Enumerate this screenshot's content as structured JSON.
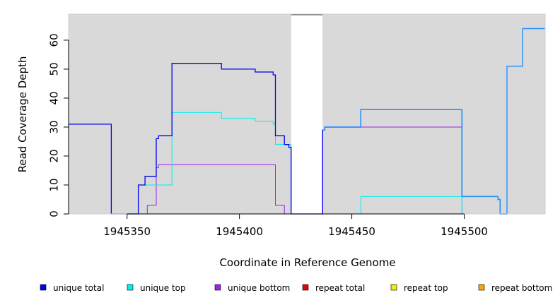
{
  "chart_data": {
    "type": "line",
    "title": "",
    "xlabel": "Coordinate in Reference Genome",
    "ylabel": "Read Coverage Depth",
    "xlim": [
      1945324,
      1945536
    ],
    "ylim": [
      0,
      69
    ],
    "xticks": [
      1945350,
      1945400,
      1945450,
      1945500
    ],
    "yticks": [
      0,
      10,
      20,
      30,
      40,
      50,
      60
    ],
    "grid": false,
    "background": "#d9d9d9",
    "gap_region": [
      1945423,
      1945437
    ],
    "legend_position": "bottom",
    "series": [
      {
        "name": "unique total",
        "color": "#0000ee",
        "steps": [
          [
            1945324,
            31
          ],
          [
            1945343,
            0
          ],
          [
            1945355,
            10
          ],
          [
            1945358,
            13
          ],
          [
            1945363,
            26
          ],
          [
            1945364,
            27
          ],
          [
            1945370,
            52
          ],
          [
            1945392,
            50
          ],
          [
            1945407,
            49
          ],
          [
            1945415,
            48
          ],
          [
            1945416,
            27
          ],
          [
            1945420,
            24
          ],
          [
            1945422,
            23
          ],
          [
            1945423,
            0
          ],
          [
            1945437,
            29
          ],
          [
            1945438,
            30
          ],
          [
            1945454,
            36
          ],
          [
            1945499,
            6
          ],
          [
            1945515,
            5
          ],
          [
            1945516,
            0
          ]
        ],
        "x_end": 1945519
      },
      {
        "name": "unique top",
        "color": "#00eeee",
        "steps": [
          [
            1945324,
            0
          ],
          [
            1945355,
            10
          ],
          [
            1945370,
            35
          ],
          [
            1945392,
            33
          ],
          [
            1945407,
            32
          ],
          [
            1945415,
            31
          ],
          [
            1945416,
            24
          ],
          [
            1945423,
            0
          ],
          [
            1945437,
            0
          ],
          [
            1945454,
            6
          ],
          [
            1945499,
            0
          ]
        ],
        "x_end": 1945519
      },
      {
        "name": "unique bottom",
        "color": "#a020f0",
        "steps": [
          [
            1945324,
            0
          ],
          [
            1945359,
            3
          ],
          [
            1945363,
            16
          ],
          [
            1945364,
            17
          ],
          [
            1945416,
            3
          ],
          [
            1945420,
            0
          ],
          [
            1945437,
            29
          ],
          [
            1945438,
            30
          ],
          [
            1945499,
            0
          ]
        ],
        "x_end": 1945519
      },
      {
        "name": "repeat total",
        "color": "#ee0000",
        "steps": [
          [
            1945324,
            0
          ]
        ],
        "x_end": 1945536
      },
      {
        "name": "repeat top",
        "color": "#eeee00",
        "steps": [
          [
            1945324,
            0
          ]
        ],
        "x_end": 1945536
      },
      {
        "name": "repeat bottom",
        "color": "#ffa500",
        "steps": [
          [
            1945324,
            0
          ]
        ],
        "x_end": 1945536
      }
    ],
    "overlay": {
      "color": "#1e90ff",
      "steps": [
        [
          1945437,
          29
        ],
        [
          1945438,
          30
        ],
        [
          1945454,
          36
        ],
        [
          1945499,
          6
        ],
        [
          1945515,
          5
        ],
        [
          1945516,
          0
        ],
        [
          1945519,
          51
        ],
        [
          1945526,
          64
        ]
      ],
      "x_end": 1945536
    }
  }
}
